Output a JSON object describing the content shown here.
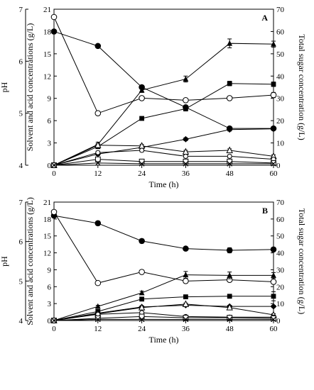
{
  "figure_type": "dual-panel chart",
  "chart_data": [
    {
      "type": "line",
      "panel_label": "A",
      "xlabel": "Time (h)",
      "x": [
        0,
        12,
        24,
        36,
        48,
        60
      ],
      "x_ticks": [
        "0",
        "12",
        "24",
        "36",
        "48",
        "60"
      ],
      "left_outer_axis": {
        "label": "pH",
        "ylim": [
          4,
          7
        ],
        "ticks": [
          "4",
          "5",
          "6",
          "7"
        ]
      },
      "left_inner_axis": {
        "label": "Solvent and acid concentrations (g/L)",
        "ylim": [
          0,
          21
        ],
        "ticks": [
          "0",
          "3",
          "6",
          "9",
          "12",
          "15",
          "18",
          "21"
        ]
      },
      "right_axis": {
        "label": "Total sugar concentration (g/L)",
        "ylim": [
          0,
          70
        ],
        "ticks": [
          "0",
          "10",
          "20",
          "30",
          "40",
          "50",
          "60",
          "70"
        ]
      },
      "series": [
        {
          "marker": "circle-filled",
          "axis": "right",
          "values": [
            60.0,
            53.5,
            35.0,
            26.0,
            16.5,
            16.5
          ],
          "err": [
            0.6,
            0.8,
            0.8,
            0.6,
            0.8,
            0.6
          ]
        },
        {
          "marker": "circle-open",
          "axis": "left_outer",
          "values": [
            6.85,
            5.0,
            5.29,
            5.25,
            5.29,
            5.35
          ],
          "err": [
            0.0,
            0.02,
            0.03,
            0.03,
            0.03,
            0.05
          ]
        },
        {
          "marker": "triangle-filled",
          "axis": "left_inner",
          "values": [
            0.0,
            2.8,
            10.1,
            11.6,
            16.4,
            16.3
          ],
          "err": [
            0.0,
            0.3,
            0.3,
            0.4,
            0.6,
            0.4
          ]
        },
        {
          "marker": "square-filled",
          "axis": "left_inner",
          "values": [
            0.0,
            2.5,
            6.3,
            7.6,
            11.0,
            10.9
          ],
          "err": [
            0.0,
            0.2,
            0.2,
            0.3,
            0.3,
            0.3
          ]
        },
        {
          "marker": "diamond-filled",
          "axis": "left_inner",
          "values": [
            0.0,
            1.5,
            2.4,
            3.5,
            4.8,
            4.9
          ],
          "err": [
            0.0,
            0.2,
            0.2,
            0.2,
            0.2,
            0.2
          ]
        },
        {
          "marker": "triangle-open",
          "axis": "left_inner",
          "values": [
            0.0,
            2.7,
            2.6,
            1.8,
            2.0,
            1.2
          ],
          "err": [
            0.0,
            0.2,
            0.2,
            0.2,
            0.2,
            0.2
          ]
        },
        {
          "marker": "circle-open-small",
          "axis": "left_inner",
          "values": [
            0.0,
            1.7,
            2.0,
            1.2,
            1.2,
            0.8
          ],
          "err": [
            0.0,
            0.2,
            0.2,
            0.2,
            0.2,
            0.2
          ]
        },
        {
          "marker": "square-open",
          "axis": "left_inner",
          "values": [
            0.0,
            0.8,
            0.5,
            0.5,
            0.5,
            0.3
          ],
          "err": [
            0.0,
            0.1,
            0.1,
            0.1,
            0.1,
            0.1
          ]
        },
        {
          "marker": "cross",
          "axis": "left_inner",
          "values": [
            0.0,
            0.3,
            0.2,
            0.2,
            0.2,
            0.2
          ],
          "err": [
            0.0,
            0.0,
            0.0,
            0.0,
            0.0,
            0.0
          ]
        }
      ]
    },
    {
      "type": "line",
      "panel_label": "B",
      "xlabel": "Time (h)",
      "x": [
        0,
        12,
        24,
        36,
        48,
        60
      ],
      "x_ticks": [
        "0",
        "12",
        "24",
        "36",
        "48",
        "60"
      ],
      "left_outer_axis": {
        "label": "pH",
        "ylim": [
          4,
          7
        ],
        "ticks": [
          "4",
          "5",
          "6",
          "7"
        ]
      },
      "left_inner_axis": {
        "label": "Solvent and acid concentrations (g/L)",
        "ylim": [
          0,
          21
        ],
        "ticks": [
          "0",
          "3",
          "6",
          "9",
          "12",
          "15",
          "18",
          "21"
        ]
      },
      "right_axis": {
        "label": "Total sugar concentration (g/L)",
        "ylim": [
          0,
          70
        ],
        "ticks": [
          "0",
          "10",
          "20",
          "30",
          "40",
          "50",
          "60",
          "70"
        ]
      },
      "series": [
        {
          "marker": "circle-filled",
          "axis": "right",
          "values": [
            62.0,
            57.5,
            47.0,
            42.5,
            41.5,
            42.0
          ],
          "err": [
            0.6,
            1.2,
            1.2,
            1.0,
            1.5,
            1.2
          ]
        },
        {
          "marker": "circle-open",
          "axis": "left_outer",
          "values": [
            6.75,
            4.95,
            5.23,
            5.0,
            5.03,
            4.98
          ],
          "err": [
            0.0,
            0.02,
            0.04,
            0.05,
            0.05,
            0.05
          ]
        },
        {
          "marker": "triangle-filled",
          "axis": "left_inner",
          "values": [
            0.0,
            2.5,
            4.9,
            8.1,
            8.0,
            8.0
          ],
          "err": [
            0.0,
            0.2,
            0.3,
            0.6,
            0.6,
            0.5
          ]
        },
        {
          "marker": "square-filled",
          "axis": "left_inner",
          "values": [
            0.0,
            1.6,
            3.8,
            4.2,
            4.3,
            4.3
          ],
          "err": [
            0.0,
            0.2,
            0.2,
            0.3,
            0.3,
            0.8
          ]
        },
        {
          "marker": "diamond-filled",
          "axis": "left_inner",
          "values": [
            0.0,
            1.3,
            2.4,
            2.7,
            2.5,
            2.5
          ],
          "err": [
            0.0,
            0.2,
            0.2,
            0.2,
            0.2,
            0.2
          ]
        },
        {
          "marker": "triangle-open",
          "axis": "left_inner",
          "values": [
            0.0,
            1.2,
            2.3,
            2.9,
            2.3,
            1.0
          ],
          "err": [
            0.0,
            0.2,
            0.2,
            0.2,
            0.3,
            0.2
          ]
        },
        {
          "marker": "circle-open-small",
          "axis": "left_inner",
          "values": [
            0.0,
            1.1,
            1.4,
            0.7,
            0.6,
            0.6
          ],
          "err": [
            0.0,
            0.2,
            0.2,
            0.2,
            0.2,
            0.2
          ]
        },
        {
          "marker": "square-open",
          "axis": "left_inner",
          "values": [
            0.0,
            0.4,
            0.7,
            0.5,
            0.5,
            0.4
          ],
          "err": [
            0.0,
            0.1,
            0.1,
            0.1,
            0.1,
            0.1
          ]
        },
        {
          "marker": "cross",
          "axis": "left_inner",
          "values": [
            0.0,
            0.2,
            0.2,
            0.2,
            0.2,
            0.2
          ],
          "err": [
            0.0,
            0.0,
            0.0,
            0.0,
            0.0,
            0.0
          ]
        }
      ]
    }
  ]
}
